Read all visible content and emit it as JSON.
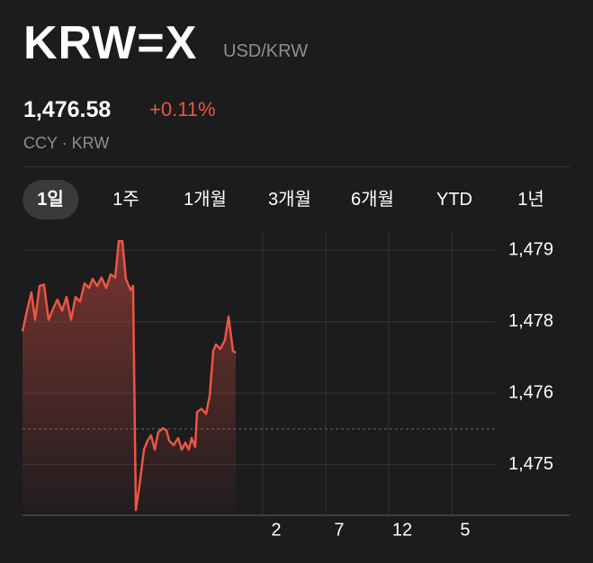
{
  "header": {
    "symbol": "KRW=X",
    "pair": "USD/KRW",
    "price": "1,476.58",
    "change": "+0.11%",
    "exchange": "CCY · KRW"
  },
  "tabs": [
    "1일",
    "1주",
    "1개월",
    "3개월",
    "6개월",
    "YTD",
    "1년"
  ],
  "selected_tab": 0,
  "chart_data": {
    "type": "line",
    "color": "#eb5545",
    "grid": true,
    "x": [
      6.93,
      7.29,
      7.64,
      7.93,
      8.29,
      8.64,
      9.0,
      9.36,
      9.71,
      10.07,
      10.43,
      10.79,
      11.14,
      11.5,
      11.86,
      12.21,
      12.5,
      12.86,
      13.21,
      13.57,
      13.93,
      14.29,
      14.57,
      14.86,
      15.14,
      15.5,
      15.71,
      15.93,
      16.21,
      16.57,
      16.86,
      17.14,
      17.43,
      17.71,
      18.07,
      18.36,
      18.57,
      18.93,
      19.29,
      19.57,
      19.86,
      20.14,
      20.36,
      20.64,
      20.79,
      21.14,
      21.5,
      21.79,
      22.07,
      22.29,
      22.64,
      23.0,
      23.29,
      23.64,
      23.86
    ],
    "values": [
      1477.35,
      1477.67,
      1477.95,
      1477.53,
      1478.05,
      1478.07,
      1477.53,
      1477.7,
      1477.84,
      1477.67,
      1477.88,
      1477.53,
      1477.88,
      1477.81,
      1478.09,
      1478.02,
      1478.16,
      1478.05,
      1478.18,
      1478.02,
      1478.23,
      1478.18,
      1478.74,
      1478.74,
      1478.16,
      1477.99,
      1478.05,
      1474.6,
      1474.97,
      1475.53,
      1475.67,
      1475.75,
      1475.53,
      1475.8,
      1475.86,
      1475.83,
      1475.67,
      1475.6,
      1475.71,
      1475.53,
      1475.64,
      1475.53,
      1475.71,
      1475.57,
      1476.11,
      1476.16,
      1476.08,
      1476.36,
      1477.05,
      1477.15,
      1477.08,
      1477.22,
      1477.58,
      1477.05,
      1477.02
    ],
    "xlim": [
      6.93,
      44.5
    ],
    "xticks": [
      {
        "value": 26,
        "label": "2"
      },
      {
        "value": 31,
        "label": "7"
      },
      {
        "value": 36,
        "label": "12"
      },
      {
        "value": 41,
        "label": "5"
      }
    ],
    "ylim": [
      1474.52,
      1478.88
    ],
    "yticks": [
      {
        "value": 1478.6,
        "label": "1,479"
      },
      {
        "value": 1477.5,
        "label": "1,478"
      },
      {
        "value": 1476.4,
        "label": "1,476"
      },
      {
        "value": 1475.3,
        "label": "1,475"
      }
    ],
    "reference_line": 1475.85
  }
}
